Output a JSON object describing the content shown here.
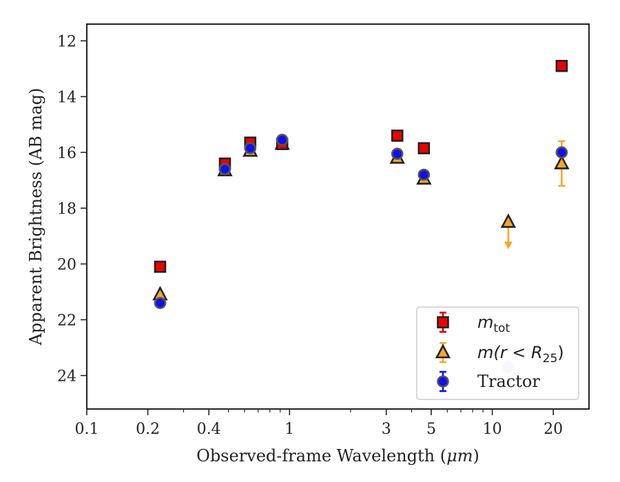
{
  "chart_data": {
    "type": "scatter",
    "xlabel_prefix": "Observed-frame Wavelength (",
    "xlabel_unit": "μm",
    "xlabel_suffix": ")",
    "ylabel": "Apparent Brightness (AB mag)",
    "xscale": "log",
    "xlim": [
      0.1,
      30
    ],
    "ylim": [
      25.2,
      11.4
    ],
    "y_inverted": true,
    "grid": false,
    "legend_position": "bottom-right",
    "x_ticks": [
      {
        "value": 0.1,
        "label": "0.1"
      },
      {
        "value": 0.2,
        "label": "0.2"
      },
      {
        "value": 0.4,
        "label": "0.4"
      },
      {
        "value": 1,
        "label": "1"
      },
      {
        "value": 3,
        "label": "3"
      },
      {
        "value": 5,
        "label": "5"
      },
      {
        "value": 10,
        "label": "10"
      },
      {
        "value": 20,
        "label": "20"
      }
    ],
    "y_ticks": [
      12,
      14,
      16,
      18,
      20,
      22,
      24
    ],
    "series": [
      {
        "name_main": "m",
        "name_sub": "tot",
        "marker": "square",
        "fill": "#ee0000",
        "errorbar_color": "#dd0000",
        "points": [
          {
            "x": 0.23,
            "y": 20.1
          },
          {
            "x": 0.48,
            "y": 16.4
          },
          {
            "x": 0.64,
            "y": 15.65
          },
          {
            "x": 0.92,
            "y": 15.7
          },
          {
            "x": 3.4,
            "y": 15.4
          },
          {
            "x": 4.6,
            "y": 15.85
          },
          {
            "x": 22.0,
            "y": 12.9
          }
        ]
      },
      {
        "name_main": "m(r < R",
        "name_sub": "25",
        "name_end": ")",
        "marker": "triangle",
        "fill": "#f7a823",
        "errorbar_color": "#f7a823",
        "points": [
          {
            "x": 0.23,
            "y": 21.1
          },
          {
            "x": 0.48,
            "y": 16.65
          },
          {
            "x": 0.64,
            "y": 15.95
          },
          {
            "x": 0.92,
            "y": 15.7
          },
          {
            "x": 3.4,
            "y": 16.2
          },
          {
            "x": 4.6,
            "y": 16.95
          },
          {
            "x": 12.0,
            "y": 18.5,
            "upper_limit_to": 19.4
          },
          {
            "x": 22.0,
            "y": 16.4,
            "err": 0.8
          }
        ]
      },
      {
        "name_main": "Tractor",
        "marker": "circle",
        "fill": "#1010ee",
        "errorbar_color": "#1010ee",
        "points": [
          {
            "x": 0.23,
            "y": 21.4
          },
          {
            "x": 0.48,
            "y": 16.6
          },
          {
            "x": 0.64,
            "y": 15.85
          },
          {
            "x": 0.92,
            "y": 15.55
          },
          {
            "x": 3.4,
            "y": 16.05
          },
          {
            "x": 4.6,
            "y": 16.8
          },
          {
            "x": 12.0,
            "y": 23.7,
            "faded": true
          },
          {
            "x": 22.0,
            "y": 16.0
          }
        ]
      }
    ]
  }
}
